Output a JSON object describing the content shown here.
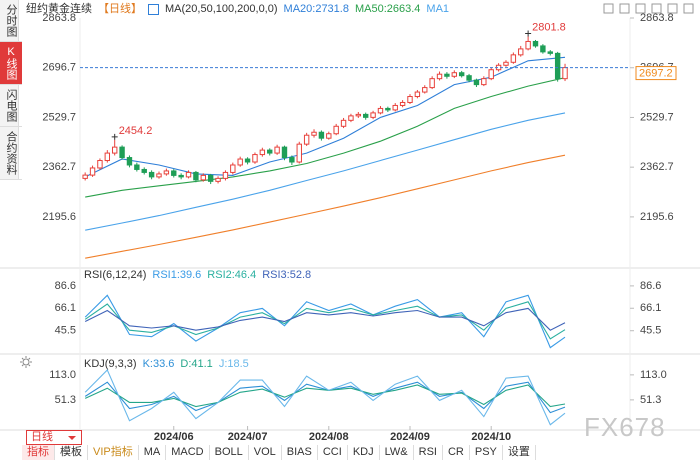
{
  "chart_data": [
    {
      "type": "candlestick",
      "title": "纽约黄金连续",
      "period": "【日线】",
      "overlay_label": "MA(20,50,100,200,0,0)",
      "up_color": "#e8413b",
      "down_color": "#1f9e57",
      "open": [
        2325,
        2336,
        2360,
        2385,
        2410,
        2430,
        2395,
        2370,
        2355,
        2345,
        2330,
        2340,
        2350,
        2335,
        2330,
        2345,
        2320,
        2335,
        2315,
        2325,
        2345,
        2370,
        2390,
        2380,
        2405,
        2420,
        2410,
        2430,
        2395,
        2380,
        2440,
        2470,
        2480,
        2460,
        2475,
        2500,
        2520,
        2535,
        2540,
        2530,
        2545,
        2560,
        2555,
        2570,
        2580,
        2600,
        2615,
        2630,
        2660,
        2675,
        2668,
        2680,
        2670,
        2655,
        2640,
        2660,
        2690,
        2705,
        2715,
        2740,
        2760,
        2785,
        2770,
        2750,
        2745,
        2660
      ],
      "high": [
        2345,
        2368,
        2392,
        2420,
        2454.2,
        2436,
        2402,
        2378,
        2362,
        2352,
        2348,
        2358,
        2356,
        2342,
        2352,
        2350,
        2342,
        2340,
        2332,
        2352,
        2378,
        2398,
        2396,
        2412,
        2428,
        2426,
        2438,
        2435,
        2402,
        2448,
        2478,
        2490,
        2486,
        2482,
        2508,
        2528,
        2542,
        2548,
        2546,
        2552,
        2568,
        2566,
        2578,
        2588,
        2608,
        2622,
        2638,
        2668,
        2684,
        2682,
        2688,
        2686,
        2676,
        2660,
        2668,
        2698,
        2712,
        2722,
        2748,
        2770,
        2801.8,
        2790,
        2776,
        2756,
        2750,
        2710
      ],
      "low": [
        2318,
        2330,
        2354,
        2378,
        2402,
        2388,
        2362,
        2348,
        2338,
        2322,
        2324,
        2334,
        2328,
        2322,
        2325,
        2312,
        2314,
        2306,
        2308,
        2318,
        2338,
        2364,
        2372,
        2374,
        2398,
        2402,
        2404,
        2386,
        2370,
        2375,
        2434,
        2462,
        2452,
        2455,
        2470,
        2494,
        2514,
        2528,
        2522,
        2524,
        2540,
        2548,
        2550,
        2564,
        2575,
        2594,
        2610,
        2625,
        2654,
        2660,
        2662,
        2664,
        2648,
        2632,
        2635,
        2655,
        2684,
        2700,
        2710,
        2734,
        2755,
        2764,
        2744,
        2738,
        2650,
        2652
      ],
      "close": [
        2336,
        2360,
        2385,
        2410,
        2430,
        2395,
        2370,
        2355,
        2345,
        2330,
        2340,
        2350,
        2335,
        2330,
        2345,
        2320,
        2335,
        2315,
        2325,
        2345,
        2370,
        2390,
        2380,
        2405,
        2420,
        2410,
        2430,
        2395,
        2380,
        2440,
        2470,
        2480,
        2460,
        2475,
        2500,
        2520,
        2535,
        2540,
        2530,
        2545,
        2560,
        2555,
        2570,
        2580,
        2600,
        2615,
        2630,
        2660,
        2675,
        2668,
        2680,
        2670,
        2655,
        2640,
        2660,
        2690,
        2705,
        2715,
        2740,
        2760,
        2785,
        2770,
        2750,
        2745,
        2660,
        2697.2
      ],
      "xlim": [
        -0.7,
        73.8
      ],
      "ylim": [
        2034,
        2863.8
      ],
      "yticks": [
        2863.8,
        2696.7,
        2529.7,
        2362.7,
        2195.6
      ],
      "xticks": [
        {
          "value": 12,
          "label": "2024/06"
        },
        {
          "value": 22,
          "label": "2024/07"
        },
        {
          "value": 33,
          "label": "2024/08"
        },
        {
          "value": 44,
          "label": "2024/09"
        },
        {
          "value": 55,
          "label": "2024/10"
        }
      ],
      "annotated_highs": [
        4,
        60
      ],
      "last_price": 2697.2,
      "last_price_color": "#f08a1c",
      "ma_x": [
        0,
        5,
        10,
        15,
        20,
        25,
        30,
        35,
        40,
        45,
        50,
        55,
        60,
        65
      ],
      "ma": [
        {
          "label": "MA20:2731.8",
          "color": "#2f7fd8",
          "values": [
            2330,
            2390,
            2370,
            2340,
            2335,
            2380,
            2410,
            2460,
            2530,
            2570,
            2640,
            2665,
            2720,
            2731.8
          ]
        },
        {
          "label": "MA50:2663.4",
          "color": "#2aa04a",
          "values": [
            2262,
            2285,
            2300,
            2315,
            2330,
            2350,
            2375,
            2410,
            2450,
            2500,
            2560,
            2600,
            2635,
            2663.4
          ]
        },
        {
          "label": "MA1",
          "color": "#4aa3ea",
          "values": [
            2151,
            2175,
            2200,
            2228,
            2255,
            2285,
            2318,
            2350,
            2385,
            2420,
            2455,
            2490,
            2520,
            2545
          ]
        },
        {
          "color": "#f07f2a",
          "values": [
            2057,
            2080,
            2103,
            2127,
            2152,
            2178,
            2205,
            2232,
            2260,
            2290,
            2320,
            2350,
            2378,
            2403
          ]
        }
      ]
    },
    {
      "type": "line",
      "title": "RSI(6,12,24)",
      "x": [
        0,
        3,
        6,
        9,
        12,
        15,
        18,
        21,
        24,
        27,
        30,
        33,
        36,
        39,
        42,
        45,
        48,
        51,
        54,
        57,
        60,
        63,
        65
      ],
      "xlim": [
        -0.7,
        73.8
      ],
      "ylim": [
        26,
        92
      ],
      "yticks": [
        86.6,
        66.1,
        45.5
      ],
      "series": [
        {
          "name": "RSI1:39.6",
          "color": "#3a9be6",
          "values": [
            58,
            78,
            42,
            40,
            52,
            36,
            48,
            62,
            66,
            50,
            72,
            64,
            70,
            60,
            68,
            74,
            58,
            62,
            40,
            72,
            78,
            30,
            39.6
          ]
        },
        {
          "name": "RSI2:46.4",
          "color": "#2bb0a0",
          "values": [
            56,
            70,
            46,
            44,
            50,
            42,
            48,
            58,
            62,
            52,
            66,
            62,
            66,
            60,
            64,
            68,
            58,
            60,
            46,
            66,
            72,
            38,
            46.4
          ]
        },
        {
          "name": "RSI3:52.8",
          "color": "#3f63b8",
          "values": [
            54,
            64,
            50,
            48,
            50,
            46,
            49,
            55,
            58,
            54,
            62,
            60,
            62,
            59,
            62,
            64,
            58,
            58,
            50,
            62,
            66,
            46,
            52.8
          ]
        }
      ]
    },
    {
      "type": "line",
      "title": "KDJ(9,3,3)",
      "x": [
        0,
        3,
        6,
        9,
        12,
        15,
        18,
        21,
        24,
        27,
        30,
        33,
        36,
        39,
        42,
        45,
        48,
        51,
        54,
        57,
        60,
        63,
        65
      ],
      "xlim": [
        -0.7,
        73.8
      ],
      "ylim": [
        -23,
        125
      ],
      "yticks": [
        {
          "value": 113,
          "label": "113.0"
        },
        51.3
      ],
      "series": [
        {
          "name": "K:33.6",
          "color": "#2e8fd6",
          "values": [
            60,
            95,
            30,
            40,
            60,
            25,
            45,
            80,
            85,
            50,
            90,
            75,
            85,
            60,
            80,
            95,
            60,
            70,
            30,
            85,
            95,
            20,
            33.6
          ]
        },
        {
          "name": "D:41.1",
          "color": "#25a68a",
          "values": [
            55,
            80,
            45,
            45,
            55,
            35,
            45,
            70,
            78,
            58,
            80,
            75,
            80,
            65,
            75,
            88,
            65,
            68,
            40,
            75,
            88,
            35,
            41.1
          ]
        },
        {
          "name": "J:18.5",
          "color": "#6ab8ea",
          "values": [
            70,
            125,
            0,
            30,
            70,
            5,
            45,
            100,
            100,
            35,
            110,
            75,
            95,
            50,
            90,
            110,
            50,
            75,
            10,
            105,
            110,
            -10,
            18.5
          ]
        }
      ]
    }
  ],
  "sidebar": {
    "tabs": [
      "分时图",
      "K线图",
      "闪电图",
      "合约资料"
    ],
    "active": 1
  },
  "toolbar": {
    "period": "日线",
    "tabs": [
      "指标",
      "模板",
      "VIP指标",
      "MA",
      "MACD",
      "BOLL",
      "VOL",
      "BIAS",
      "CCI",
      "KDJ",
      "LW&",
      "RSI",
      "CR",
      "PSY",
      "设置"
    ],
    "active": 0
  },
  "watermark": "FX678"
}
